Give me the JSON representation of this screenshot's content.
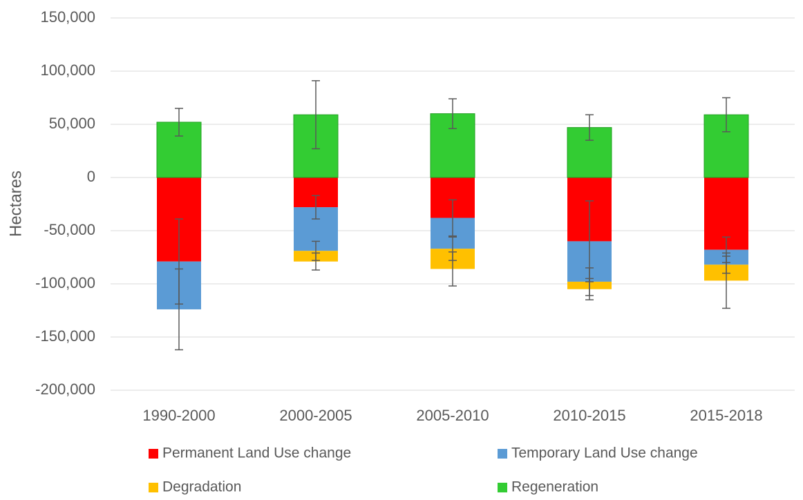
{
  "chart_data": {
    "type": "stacked_bar",
    "y_label": "Hectares",
    "categories": [
      "1990-2000",
      "2000-2005",
      "2005-2010",
      "2010-2015",
      "2015-2018"
    ],
    "series": [
      {
        "name": "Permanent Land Use change",
        "color": "#ff0000",
        "values": [
          -79000,
          -28000,
          -38000,
          -60000,
          -68000
        ],
        "errors": [
          40000,
          11000,
          17000,
          38000,
          12000
        ]
      },
      {
        "name": "Temporary Land Use change",
        "color": "#5b9bd5",
        "values": [
          -45000,
          -41000,
          -29000,
          -38000,
          -14000
        ],
        "errors": [
          38000,
          9000,
          11000,
          13000,
          8000
        ]
      },
      {
        "name": "Degradation",
        "color": "#ffc000",
        "values": [
          0,
          -10000,
          -19000,
          -7000,
          -15000
        ],
        "errors": [
          0,
          8000,
          16000,
          10000,
          26000
        ]
      },
      {
        "name": "Regeneration",
        "color": "#33cc33",
        "values": [
          52000,
          59000,
          60000,
          47000,
          59000
        ],
        "errors": [
          13000,
          32000,
          14000,
          12000,
          16000
        ]
      }
    ],
    "ylim": [
      -200000,
      150000
    ],
    "yticks": [
      {
        "value": -200000,
        "label": "-200,000"
      },
      {
        "value": -150000,
        "label": "-150,000"
      },
      {
        "value": -100000,
        "label": "-100,000"
      },
      {
        "value": -50000,
        "label": "-50,000"
      },
      0,
      {
        "value": 50000,
        "label": "50,000"
      },
      {
        "value": 100000,
        "label": "100,000"
      },
      {
        "value": 150000,
        "label": "150,000"
      }
    ],
    "grid": true
  }
}
